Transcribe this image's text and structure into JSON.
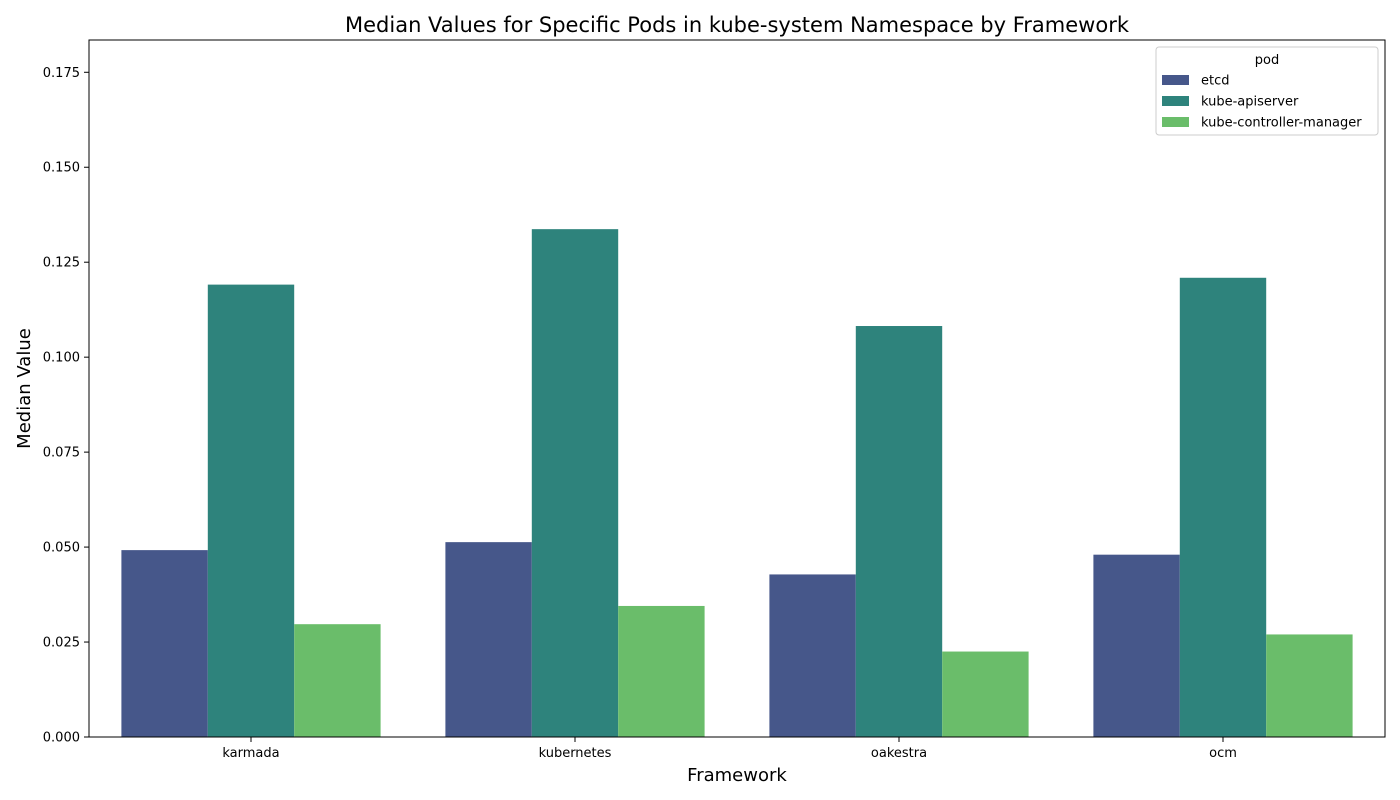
{
  "chart_data": {
    "type": "bar",
    "title": "Median Values for Specific Pods in kube-system Namespace by Framework",
    "xlabel": "Framework",
    "ylabel": "Median Value",
    "categories": [
      "karmada",
      "kubernetes",
      "oakestra",
      "ocm"
    ],
    "series": [
      {
        "name": "etcd",
        "color": "#46578a",
        "values": [
          0.0492,
          0.0513,
          0.0428,
          0.048
        ]
      },
      {
        "name": "kube-apiserver",
        "color": "#2e837c",
        "values": [
          0.1191,
          0.1337,
          0.1082,
          0.1209
        ]
      },
      {
        "name": "kube-controller-manager",
        "color": "#6abd6a",
        "values": [
          0.0297,
          0.0345,
          0.0225,
          0.027
        ]
      }
    ],
    "ylim": [
      0,
      0.1835
    ],
    "yticks": [
      "0.000",
      "0.025",
      "0.050",
      "0.075",
      "0.100",
      "0.125",
      "0.150",
      "0.175"
    ],
    "grid": false,
    "legend": {
      "title": "pod",
      "placement": "top-right"
    }
  }
}
